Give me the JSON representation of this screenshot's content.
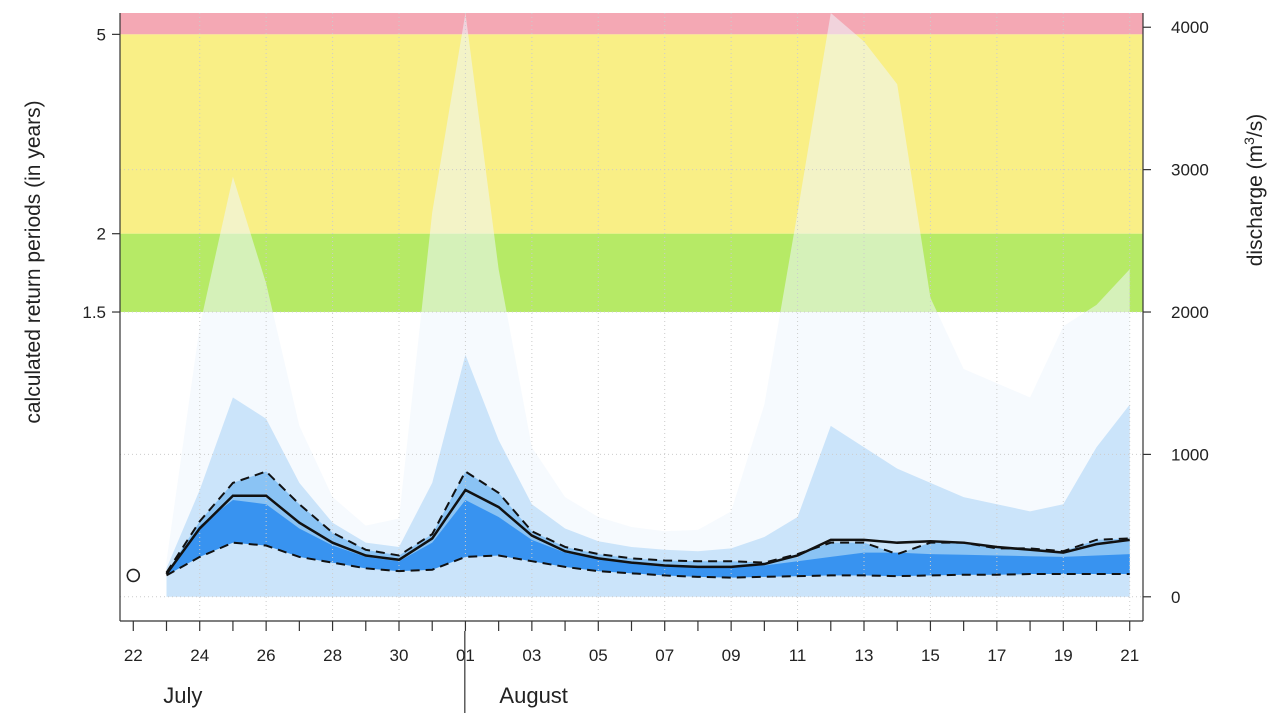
{
  "chart_data": {
    "type": "line",
    "ylabel_left": "calculated return periods (in years)",
    "ylabel_right_prefix": "discharge (m",
    "ylabel_right_sup": "3",
    "ylabel_right_suffix": "/s)",
    "left_ticks": [
      {
        "label": "1.5",
        "discharge": 2000
      },
      {
        "label": "2",
        "discharge": 2550
      },
      {
        "label": "5",
        "discharge": 3950
      }
    ],
    "right_ticks": [
      0,
      1000,
      2000,
      3000,
      4000
    ],
    "ylim": [
      -170,
      4100
    ],
    "x_day_range": [
      -0.4,
      30.4
    ],
    "x_tick_labels": [
      "22",
      "24",
      "26",
      "28",
      "30",
      "01",
      "03",
      "05",
      "07",
      "09",
      "11",
      "13",
      "15",
      "17",
      "19",
      "21"
    ],
    "x_tick_days": [
      0,
      2,
      4,
      6,
      8,
      10,
      12,
      14,
      16,
      18,
      20,
      22,
      24,
      26,
      28,
      30
    ],
    "months": [
      {
        "label": "July",
        "start_day": 0
      },
      {
        "label": "August",
        "start_day": 10
      }
    ],
    "month_divider_day": 9.5,
    "threshold_bands": [
      {
        "name": "5-year",
        "from": 3950,
        "to": 4100,
        "color": "#f4a8b4"
      },
      {
        "name": "2-year",
        "from": 2550,
        "to": 3950,
        "color": "#f9ef86"
      },
      {
        "name": "1.5-year",
        "from": 2000,
        "to": 2550,
        "color": "#b6ea66"
      }
    ],
    "colors": {
      "envelope_light": "#eef6fd",
      "envelope_mid": "#bcdcf8",
      "envelope_strong": "#7fbdf2",
      "core": "#2f8ef0",
      "line": "#111111",
      "grid": "#cccccc"
    },
    "observed_point": {
      "day": 0,
      "value": 150
    },
    "series": {
      "days": [
        1,
        2,
        3,
        4,
        5,
        6,
        7,
        8,
        9,
        10,
        11,
        12,
        13,
        14,
        15,
        16,
        17,
        18,
        19,
        20,
        21,
        22,
        23,
        24,
        25,
        26,
        27,
        28,
        29,
        30
      ],
      "median": [
        160,
        480,
        710,
        710,
        520,
        380,
        290,
        260,
        410,
        750,
        630,
        430,
        320,
        270,
        240,
        220,
        210,
        210,
        230,
        290,
        400,
        400,
        380,
        390,
        380,
        350,
        330,
        310,
        370,
        400
      ],
      "upper": [
        170,
        530,
        800,
        880,
        650,
        450,
        330,
        290,
        440,
        880,
        730,
        460,
        350,
        300,
        270,
        255,
        250,
        250,
        240,
        300,
        380,
        380,
        300,
        380,
        380,
        340,
        340,
        320,
        400,
        410
      ],
      "lower": [
        150,
        280,
        380,
        360,
        280,
        240,
        200,
        180,
        190,
        280,
        290,
        250,
        210,
        180,
        165,
        150,
        140,
        135,
        140,
        145,
        150,
        150,
        145,
        150,
        155,
        155,
        160,
        160,
        160,
        160
      ],
      "core_upper": [
        170,
        500,
        680,
        650,
        480,
        360,
        280,
        250,
        380,
        680,
        560,
        400,
        310,
        265,
        240,
        220,
        210,
        210,
        220,
        250,
        280,
        310,
        310,
        300,
        295,
        290,
        285,
        280,
        290,
        300
      ],
      "mid_upper": [
        200,
        750,
        1400,
        1250,
        800,
        520,
        380,
        350,
        800,
        1700,
        1100,
        650,
        480,
        390,
        350,
        330,
        320,
        340,
        420,
        560,
        1200,
        1050,
        900,
        800,
        700,
        650,
        600,
        650,
        1050,
        1350
      ],
      "outer_upper": [
        250,
        1900,
        2950,
        2200,
        1200,
        700,
        500,
        550,
        2700,
        4300,
        2300,
        1050,
        700,
        560,
        490,
        460,
        470,
        600,
        1350,
        2700,
        4200,
        3900,
        3600,
        2100,
        1600,
        1500,
        1400,
        1900,
        2050,
        2300
      ]
    }
  }
}
